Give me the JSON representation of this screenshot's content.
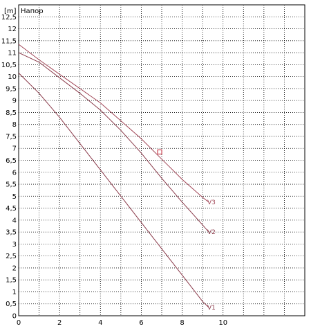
{
  "chart_data": {
    "type": "line",
    "title": "Напор",
    "y_unit": "[m]",
    "xlim": [
      0,
      14
    ],
    "ylim": [
      0,
      13
    ],
    "x_ticks": [
      {
        "value": 0,
        "label": "0"
      },
      {
        "value": 2,
        "label": "2"
      },
      {
        "value": 4,
        "label": "4"
      },
      {
        "value": 6,
        "label": "6"
      },
      {
        "value": 8,
        "label": "8"
      },
      {
        "value": 10,
        "label": "10"
      }
    ],
    "y_ticks": [
      {
        "value": 0,
        "label": "0"
      },
      {
        "value": 0.5,
        "label": "0,5"
      },
      {
        "value": 1,
        "label": "1"
      },
      {
        "value": 1.5,
        "label": "1,5"
      },
      {
        "value": 2,
        "label": "2"
      },
      {
        "value": 2.5,
        "label": "2,5"
      },
      {
        "value": 3,
        "label": "3"
      },
      {
        "value": 3.5,
        "label": "3,5"
      },
      {
        "value": 4,
        "label": "4"
      },
      {
        "value": 4.5,
        "label": "4,5"
      },
      {
        "value": 5,
        "label": "5"
      },
      {
        "value": 5.5,
        "label": "5,5"
      },
      {
        "value": 6,
        "label": "6"
      },
      {
        "value": 6.5,
        "label": "6,5"
      },
      {
        "value": 7,
        "label": "7"
      },
      {
        "value": 7.5,
        "label": "7,5"
      },
      {
        "value": 8,
        "label": "8"
      },
      {
        "value": 8.5,
        "label": "8,5"
      },
      {
        "value": 9,
        "label": "9"
      },
      {
        "value": 9.5,
        "label": "9,5"
      },
      {
        "value": 10,
        "label": "10"
      },
      {
        "value": 10.5,
        "label": "10,5"
      },
      {
        "value": 11,
        "label": "11"
      },
      {
        "value": 11.5,
        "label": "11,5"
      },
      {
        "value": 12,
        "label": "12"
      },
      {
        "value": 12.5,
        "label": "12,5"
      }
    ],
    "series": [
      {
        "name": "V1",
        "color": "#8a3a4a",
        "x": [
          0,
          1,
          2,
          3,
          4,
          5,
          6,
          7,
          8,
          9,
          9.3
        ],
        "y": [
          10.15,
          9.3,
          8.3,
          7.2,
          6.1,
          5.0,
          3.9,
          2.8,
          1.7,
          0.6,
          0.35
        ]
      },
      {
        "name": "V2",
        "color": "#8a3a4a",
        "x": [
          0,
          1,
          2,
          3,
          4,
          5,
          6,
          7,
          8,
          9,
          9.3
        ],
        "y": [
          11.0,
          10.6,
          9.95,
          9.3,
          8.6,
          7.75,
          6.8,
          5.75,
          4.75,
          3.8,
          3.5
        ]
      },
      {
        "name": "V3",
        "color": "#a04455",
        "x": [
          0,
          1,
          2,
          3,
          4,
          5,
          6,
          7,
          8,
          9,
          9.3
        ],
        "y": [
          11.35,
          10.7,
          10.1,
          9.5,
          8.9,
          8.15,
          7.4,
          6.55,
          5.7,
          4.95,
          4.75
        ]
      }
    ],
    "marker": {
      "x": 6.9,
      "y": 6.85
    },
    "grid": true
  }
}
